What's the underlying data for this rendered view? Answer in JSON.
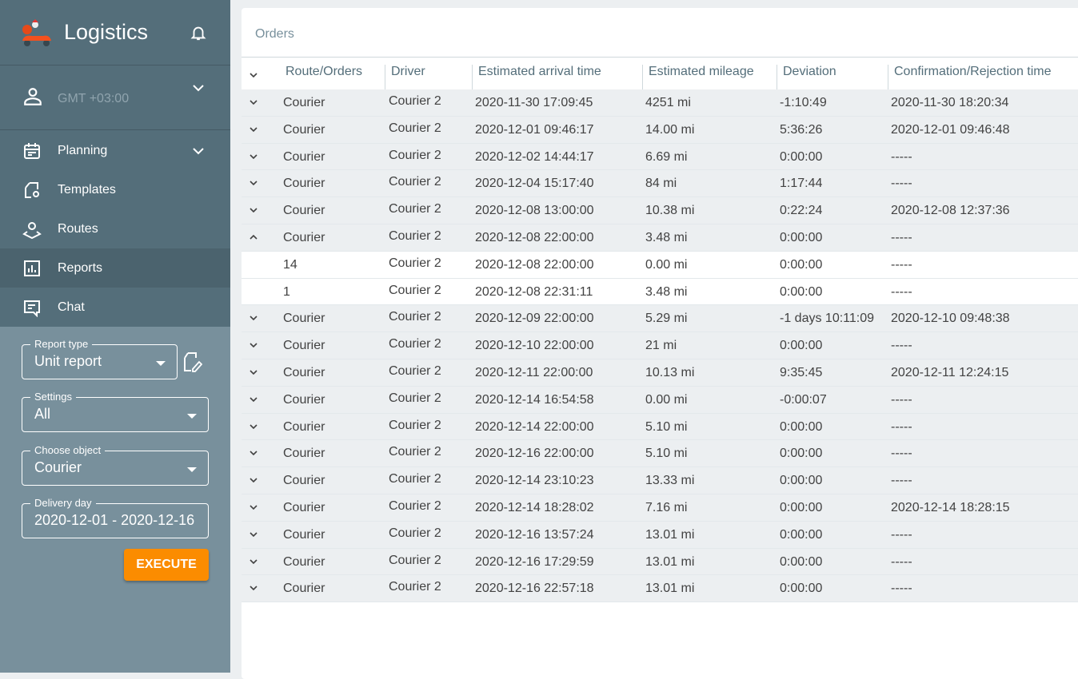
{
  "app": {
    "title": "Logistics",
    "timezone": "GMT +03:00"
  },
  "nav": [
    {
      "label": "Planning",
      "icon": "calendar-icon"
    },
    {
      "label": "Templates",
      "icon": "template-icon"
    },
    {
      "label": "Routes",
      "icon": "route-icon"
    },
    {
      "label": "Reports",
      "icon": "reports-icon",
      "active": true
    },
    {
      "label": "Chat",
      "icon": "chat-icon"
    }
  ],
  "form": {
    "report_type": {
      "label": "Report type",
      "value": "Unit report"
    },
    "settings": {
      "label": "Settings",
      "value": "All"
    },
    "object": {
      "label": "Choose object",
      "value": "Courier"
    },
    "delivery": {
      "label": "Delivery day",
      "value": "2020-12-01 - 2020-12-16"
    },
    "execute": "EXECUTE"
  },
  "colors": {
    "accent": "#fb8c00",
    "sidebar": "#78909c",
    "sidebar_top": "#546e7a"
  },
  "table": {
    "title": "Orders",
    "headers": [
      "Route/Orders",
      "Driver",
      "Estimated arrival time",
      "Estimated mileage",
      "Deviation",
      "Confirmation/Rejection time"
    ],
    "rows": [
      {
        "toggle": "down",
        "cells": [
          "Courier",
          "Courier 2",
          "2020-11-30 17:09:45",
          "4251 mi",
          "-1:10:49",
          "2020-11-30 18:20:34"
        ]
      },
      {
        "toggle": "down",
        "cells": [
          "Courier",
          "Courier 2",
          "2020-12-01 09:46:17",
          "14.00 mi",
          "5:36:26",
          "2020-12-01 09:46:48"
        ]
      },
      {
        "toggle": "down",
        "cells": [
          "Courier",
          "Courier 2",
          "2020-12-02 14:44:17",
          "6.69 mi",
          "0:00:00",
          "-----"
        ]
      },
      {
        "toggle": "down",
        "cells": [
          "Courier",
          "Courier 2",
          "2020-12-04 15:17:40",
          "84 mi",
          "1:17:44",
          "-----"
        ]
      },
      {
        "toggle": "down",
        "cells": [
          "Courier",
          "Courier 2",
          "2020-12-08 13:00:00",
          "10.38 mi",
          "0:22:24",
          "2020-12-08 12:37:36"
        ]
      },
      {
        "toggle": "up",
        "cells": [
          "Courier",
          "Courier 2",
          "2020-12-08 22:00:00",
          "3.48 mi",
          "0:00:00",
          "-----"
        ]
      },
      {
        "toggle": "none",
        "cells": [
          "14",
          "Courier 2",
          "2020-12-08 22:00:00",
          "0.00 mi",
          "0:00:00",
          "-----"
        ]
      },
      {
        "toggle": "none",
        "cells": [
          "1",
          "Courier 2",
          "2020-12-08 22:31:11",
          "3.48 mi",
          "0:00:00",
          "-----"
        ]
      },
      {
        "toggle": "down",
        "cells": [
          "Courier",
          "Courier 2",
          "2020-12-09 22:00:00",
          "5.29 mi",
          "-1 days 10:11:09",
          "2020-12-10 09:48:38"
        ]
      },
      {
        "toggle": "down",
        "cells": [
          "Courier",
          "Courier 2",
          "2020-12-10 22:00:00",
          "21 mi",
          "0:00:00",
          "-----"
        ]
      },
      {
        "toggle": "down",
        "cells": [
          "Courier",
          "Courier 2",
          "2020-12-11 22:00:00",
          "10.13 mi",
          "9:35:45",
          "2020-12-11 12:24:15"
        ]
      },
      {
        "toggle": "down",
        "cells": [
          "Courier",
          "Courier 2",
          "2020-12-14 16:54:58",
          "0.00 mi",
          "-0:00:07",
          "-----"
        ]
      },
      {
        "toggle": "down",
        "cells": [
          "Courier",
          "Courier 2",
          "2020-12-14 22:00:00",
          "5.10 mi",
          "0:00:00",
          "-----"
        ]
      },
      {
        "toggle": "down",
        "cells": [
          "Courier",
          "Courier 2",
          "2020-12-16 22:00:00",
          "5.10 mi",
          "0:00:00",
          "-----"
        ]
      },
      {
        "toggle": "down",
        "cells": [
          "Courier",
          "Courier 2",
          "2020-12-14 23:10:23",
          "13.33 mi",
          "0:00:00",
          "-----"
        ]
      },
      {
        "toggle": "down",
        "cells": [
          "Courier",
          "Courier 2",
          "2020-12-14 18:28:02",
          "7.16 mi",
          "0:00:00",
          "2020-12-14 18:28:15"
        ]
      },
      {
        "toggle": "down",
        "cells": [
          "Courier",
          "Courier 2",
          "2020-12-16 13:57:24",
          "13.01 mi",
          "0:00:00",
          "-----"
        ]
      },
      {
        "toggle": "down",
        "cells": [
          "Courier",
          "Courier 2",
          "2020-12-16 17:29:59",
          "13.01 mi",
          "0:00:00",
          "-----"
        ]
      },
      {
        "toggle": "down",
        "cells": [
          "Courier",
          "Courier 2",
          "2020-12-16 22:57:18",
          "13.01 mi",
          "0:00:00",
          "-----"
        ]
      }
    ]
  }
}
